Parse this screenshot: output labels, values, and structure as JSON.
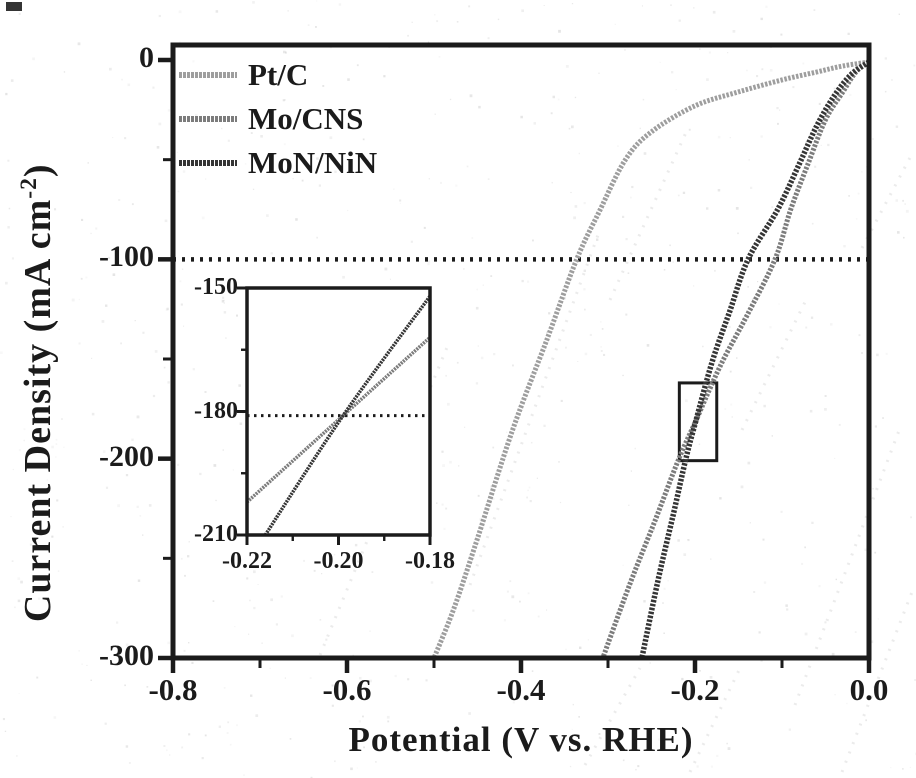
{
  "figure": {
    "background": "#ffffff",
    "ink_color": "#1b1b1b"
  },
  "chart_data": {
    "type": "line",
    "title": "",
    "xlabel": "Potential (V vs. RHE)",
    "ylabel": "Current Density (mA cm⁻²)",
    "ylabel_parts": {
      "main": "Current Density (mA cm",
      "sup": "-2",
      "close": ")"
    },
    "xlim": [
      -0.8,
      0.0
    ],
    "ylim": [
      -300,
      8
    ],
    "grid": false,
    "x_major_ticks": [
      -0.8,
      -0.6,
      -0.4,
      -0.2,
      0.0
    ],
    "x_tick_labels": [
      "-0.8",
      "-0.6",
      "-0.4",
      "-0.2",
      "0.0"
    ],
    "x_minor_ticks": [
      -0.7,
      -0.5,
      -0.3,
      -0.1
    ],
    "y_major_ticks": [
      0,
      -100,
      -200,
      -300
    ],
    "y_tick_labels": [
      "0",
      "-100",
      "-200",
      "-300"
    ],
    "y_minor_ticks": [
      -50,
      -150,
      -250
    ],
    "reference_line": {
      "y": -100,
      "style": "dotted",
      "color": "#1b1b1b"
    },
    "legend": {
      "position": "top-left-inside",
      "entries": [
        "Pt/C",
        "Mo/CNS",
        "MoN/NiN"
      ]
    },
    "series": [
      {
        "name": "Pt/C",
        "color": "#9e9e9e",
        "points": [
          [
            0.0,
            -1
          ],
          [
            -0.03,
            -3
          ],
          [
            -0.06,
            -6
          ],
          [
            -0.1,
            -10
          ],
          [
            -0.15,
            -16
          ],
          [
            -0.2,
            -23
          ],
          [
            -0.25,
            -36
          ],
          [
            -0.28,
            -50
          ],
          [
            -0.31,
            -76
          ],
          [
            -0.336,
            -100
          ],
          [
            -0.37,
            -140
          ],
          [
            -0.41,
            -186
          ],
          [
            -0.45,
            -240
          ],
          [
            -0.477,
            -275
          ],
          [
            -0.5,
            -300
          ]
        ]
      },
      {
        "name": "Mo/CNS",
        "color": "#7c7c7c",
        "points": [
          [
            0.0,
            -1
          ],
          [
            -0.015,
            -6
          ],
          [
            -0.03,
            -16
          ],
          [
            -0.05,
            -30
          ],
          [
            -0.07,
            -52
          ],
          [
            -0.09,
            -75
          ],
          [
            -0.108,
            -100
          ],
          [
            -0.14,
            -128
          ],
          [
            -0.167,
            -150
          ],
          [
            -0.183,
            -165
          ],
          [
            -0.199,
            -181
          ],
          [
            -0.2185,
            -200
          ],
          [
            -0.245,
            -230
          ],
          [
            -0.275,
            -263
          ],
          [
            -0.306,
            -300
          ]
        ]
      },
      {
        "name": "MoN/NiN",
        "color": "#353535",
        "points": [
          [
            0.0,
            -1
          ],
          [
            -0.02,
            -7
          ],
          [
            -0.04,
            -18
          ],
          [
            -0.06,
            -33
          ],
          [
            -0.08,
            -52
          ],
          [
            -0.105,
            -75
          ],
          [
            -0.139,
            -100
          ],
          [
            -0.16,
            -126
          ],
          [
            -0.18,
            -151
          ],
          [
            -0.199,
            -181
          ],
          [
            -0.2105,
            -200
          ],
          [
            -0.225,
            -228
          ],
          [
            -0.243,
            -262
          ],
          [
            -0.261,
            -300
          ]
        ]
      }
    ],
    "zoom_box": {
      "x": [
        -0.218,
        -0.175
      ],
      "y": [
        -162,
        -201
      ]
    },
    "inset": {
      "xlim": [
        -0.22,
        -0.18
      ],
      "ylim": [
        -210,
        -150
      ],
      "x_major_ticks": [
        -0.22,
        -0.2,
        -0.18
      ],
      "x_tick_labels": [
        "-0.22",
        "-0.20",
        "-0.18"
      ],
      "x_minor_ticks": [
        -0.21,
        -0.19
      ],
      "y_major_ticks": [
        -150,
        -180,
        -210
      ],
      "y_tick_labels": [
        "-150",
        "-180",
        "-210"
      ],
      "y_minor_ticks": [
        -165,
        -195
      ],
      "reference_line": {
        "y": -181,
        "style": "dotted",
        "color": "#1b1b1b"
      },
      "series": [
        {
          "name": "Mo/CNS",
          "color": "#7c7c7c",
          "points": [
            [
              -0.22,
              -202
            ],
            [
              -0.199,
              -181
            ],
            [
              -0.18,
              -162
            ]
          ]
        },
        {
          "name": "MoN/NiN",
          "color": "#353535",
          "points": [
            [
              -0.216,
              -210
            ],
            [
              -0.199,
              -181
            ],
            [
              -0.18,
              -152
            ]
          ]
        }
      ]
    }
  }
}
